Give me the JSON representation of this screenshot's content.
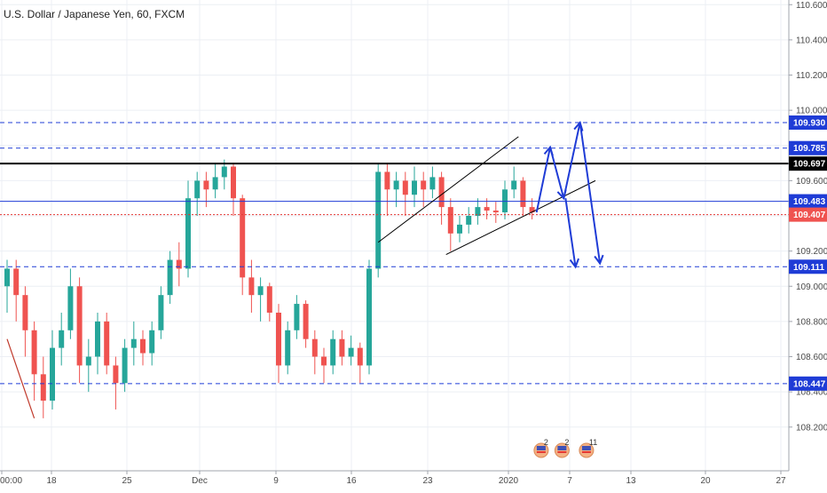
{
  "chart_data": {
    "type": "candlestick",
    "title": "U.S. Dollar / Japanese Yen, 60, FXCM",
    "ylim": [
      108.0,
      110.68
    ],
    "y_ticks": [
      "110.600",
      "110.400",
      "110.200",
      "110.000",
      "109.800",
      "109.600",
      "109.400",
      "109.200",
      "109.000",
      "108.800",
      "108.600",
      "108.400",
      "108.200"
    ],
    "x_ticks": [
      "00:00",
      "18",
      "25",
      "Dec",
      "9",
      "16",
      "23",
      "2020",
      "7",
      "13",
      "20",
      "27"
    ],
    "price_levels": [
      {
        "value": "109.930",
        "color": "#1f3cd6",
        "style": "dashed",
        "label_bg": "#1f3cd6"
      },
      {
        "value": "109.785",
        "color": "#1f3cd6",
        "style": "dashed",
        "label_bg": "#1f3cd6"
      },
      {
        "value": "109.697",
        "color": "#000000",
        "style": "solid",
        "label_bg": "#000000"
      },
      {
        "value": "109.483",
        "color": "#1f3cd6",
        "style": "solid",
        "label_bg": "#1f3cd6"
      },
      {
        "value": "109.407",
        "color": "#e53935",
        "style": "dotted",
        "label_bg": "#ef5350"
      },
      {
        "value": "109.111",
        "color": "#1f3cd6",
        "style": "dashed",
        "label_bg": "#1f3cd6"
      },
      {
        "value": "108.447",
        "color": "#1f3cd6",
        "style": "dashed",
        "label_bg": "#1f3cd6"
      }
    ],
    "events": [
      {
        "day_index": 59.5,
        "count": "2"
      },
      {
        "day_index": 61.8,
        "count": "2"
      },
      {
        "day_index": 64.5,
        "count": "11"
      }
    ],
    "path_points": [
      [
        0,
        109.1
      ],
      [
        1,
        108.95
      ],
      [
        2,
        108.8
      ],
      [
        3,
        108.55
      ],
      [
        4,
        108.3
      ],
      [
        5,
        108.65
      ],
      [
        6,
        108.75
      ],
      [
        7,
        109.05
      ],
      [
        8,
        108.5
      ],
      [
        9,
        108.6
      ],
      [
        10,
        108.8
      ],
      [
        11,
        108.55
      ],
      [
        12,
        108.45
      ],
      [
        13,
        108.65
      ],
      [
        14,
        108.7
      ],
      [
        15,
        108.62
      ],
      [
        16,
        108.75
      ],
      [
        17,
        108.95
      ],
      [
        18,
        109.15
      ],
      [
        19,
        109.1
      ],
      [
        20,
        109.5
      ],
      [
        21,
        109.6
      ],
      [
        22,
        109.55
      ],
      [
        23,
        109.6
      ],
      [
        24,
        109.7
      ],
      [
        25,
        109.5
      ],
      [
        26,
        109.05
      ],
      [
        27,
        108.95
      ],
      [
        28,
        109.0
      ],
      [
        29,
        108.85
      ],
      [
        30,
        108.55
      ],
      [
        31,
        108.75
      ],
      [
        32,
        108.9
      ],
      [
        33,
        108.7
      ],
      [
        34,
        108.6
      ],
      [
        35,
        108.55
      ],
      [
        36,
        108.7
      ],
      [
        37,
        108.6
      ],
      [
        38,
        108.65
      ],
      [
        39,
        108.55
      ],
      [
        40,
        109.1
      ],
      [
        41,
        109.65
      ],
      [
        42,
        109.55
      ],
      [
        43,
        109.6
      ],
      [
        44,
        109.52
      ],
      [
        45,
        109.6
      ],
      [
        46,
        109.55
      ],
      [
        47,
        109.62
      ],
      [
        48,
        109.45
      ],
      [
        49,
        109.3
      ],
      [
        50,
        109.35
      ],
      [
        51,
        109.4
      ],
      [
        52,
        109.45
      ],
      [
        53,
        109.43
      ],
      [
        54,
        109.42
      ],
      [
        55,
        109.55
      ],
      [
        56,
        109.6
      ],
      [
        57,
        109.45
      ],
      [
        58,
        109.42
      ]
    ],
    "series": [
      {
        "name": "",
        "values": [
          [
            0,
            109.0,
            109.15,
            108.85,
            109.1
          ],
          [
            1,
            109.1,
            109.15,
            108.8,
            108.95
          ],
          [
            2,
            108.95,
            109.0,
            108.6,
            108.75
          ],
          [
            3,
            108.75,
            108.8,
            108.35,
            108.5
          ],
          [
            4,
            108.5,
            108.6,
            108.25,
            108.35
          ],
          [
            5,
            108.35,
            108.75,
            108.3,
            108.65
          ],
          [
            6,
            108.65,
            108.85,
            108.55,
            108.75
          ],
          [
            7,
            108.75,
            109.1,
            108.7,
            109.0
          ],
          [
            8,
            109.0,
            109.05,
            108.45,
            108.55
          ],
          [
            9,
            108.55,
            108.7,
            108.4,
            108.6
          ],
          [
            10,
            108.6,
            108.85,
            108.5,
            108.8
          ],
          [
            11,
            108.8,
            108.85,
            108.5,
            108.55
          ],
          [
            12,
            108.55,
            108.6,
            108.3,
            108.45
          ],
          [
            13,
            108.45,
            108.7,
            108.4,
            108.65
          ],
          [
            14,
            108.65,
            108.8,
            108.55,
            108.7
          ],
          [
            15,
            108.7,
            108.75,
            108.55,
            108.62
          ],
          [
            16,
            108.62,
            108.8,
            108.55,
            108.75
          ],
          [
            17,
            108.75,
            109.0,
            108.7,
            108.95
          ],
          [
            18,
            108.95,
            109.2,
            108.9,
            109.15
          ],
          [
            19,
            109.15,
            109.25,
            109.0,
            109.1
          ],
          [
            20,
            109.1,
            109.6,
            109.05,
            109.5
          ],
          [
            21,
            109.5,
            109.65,
            109.4,
            109.6
          ],
          [
            22,
            109.6,
            109.65,
            109.45,
            109.55
          ],
          [
            23,
            109.55,
            109.7,
            109.5,
            109.62
          ],
          [
            24,
            109.62,
            109.72,
            109.55,
            109.68
          ],
          [
            25,
            109.68,
            109.7,
            109.4,
            109.5
          ],
          [
            26,
            109.5,
            109.52,
            108.95,
            109.05
          ],
          [
            27,
            109.05,
            109.15,
            108.85,
            108.95
          ],
          [
            28,
            108.95,
            109.05,
            108.8,
            109.0
          ],
          [
            29,
            109.0,
            109.02,
            108.8,
            108.85
          ],
          [
            30,
            108.85,
            108.9,
            108.45,
            108.55
          ],
          [
            31,
            108.55,
            108.8,
            108.5,
            108.75
          ],
          [
            32,
            108.75,
            108.95,
            108.7,
            108.9
          ],
          [
            33,
            108.9,
            108.92,
            108.65,
            108.7
          ],
          [
            34,
            108.7,
            108.75,
            108.5,
            108.6
          ],
          [
            35,
            108.6,
            108.65,
            108.45,
            108.55
          ],
          [
            36,
            108.55,
            108.75,
            108.5,
            108.7
          ],
          [
            37,
            108.7,
            108.75,
            108.55,
            108.6
          ],
          [
            38,
            108.6,
            108.72,
            108.55,
            108.65
          ],
          [
            39,
            108.65,
            108.68,
            108.45,
            108.55
          ],
          [
            40,
            108.55,
            109.15,
            108.5,
            109.1
          ],
          [
            41,
            109.1,
            109.7,
            109.05,
            109.65
          ],
          [
            42,
            109.65,
            109.7,
            109.4,
            109.55
          ],
          [
            43,
            109.55,
            109.65,
            109.45,
            109.6
          ],
          [
            44,
            109.6,
            109.65,
            109.4,
            109.52
          ],
          [
            45,
            109.52,
            109.68,
            109.45,
            109.6
          ],
          [
            46,
            109.6,
            109.65,
            109.45,
            109.55
          ],
          [
            47,
            109.55,
            109.68,
            109.5,
            109.62
          ],
          [
            48,
            109.62,
            109.65,
            109.35,
            109.45
          ],
          [
            49,
            109.45,
            109.5,
            109.2,
            109.3
          ],
          [
            50,
            109.3,
            109.4,
            109.25,
            109.35
          ],
          [
            51,
            109.35,
            109.45,
            109.3,
            109.4
          ],
          [
            52,
            109.4,
            109.5,
            109.35,
            109.45
          ],
          [
            53,
            109.45,
            109.5,
            109.38,
            109.43
          ],
          [
            54,
            109.43,
            109.48,
            109.36,
            109.42
          ],
          [
            55,
            109.42,
            109.6,
            109.38,
            109.55
          ],
          [
            56,
            109.55,
            109.68,
            109.5,
            109.6
          ],
          [
            57,
            109.6,
            109.62,
            109.4,
            109.45
          ],
          [
            58,
            109.45,
            109.5,
            109.38,
            109.42
          ]
        ]
      }
    ],
    "drawings": {
      "channel_upper": [
        [
          41,
          109.25
        ],
        [
          56.5,
          109.85
        ]
      ],
      "channel_lower": [
        [
          48.5,
          109.18
        ],
        [
          65,
          109.6
        ]
      ],
      "scenario_1": [
        [
          58.5,
          109.42
        ],
        [
          60,
          109.79
        ],
        [
          61.5,
          109.5
        ],
        [
          63.3,
          109.93
        ],
        [
          65.5,
          109.13
        ]
      ],
      "scenario_2": [
        [
          61.7,
          109.5
        ],
        [
          62.8,
          109.11
        ]
      ],
      "trend_red": [
        [
          0,
          108.7
        ],
        [
          3,
          108.25
        ]
      ]
    },
    "colors": {
      "up": "#26a69a",
      "down": "#ef5350",
      "drawing_blue": "#1f3cd6",
      "grid": "#eceff4"
    }
  }
}
